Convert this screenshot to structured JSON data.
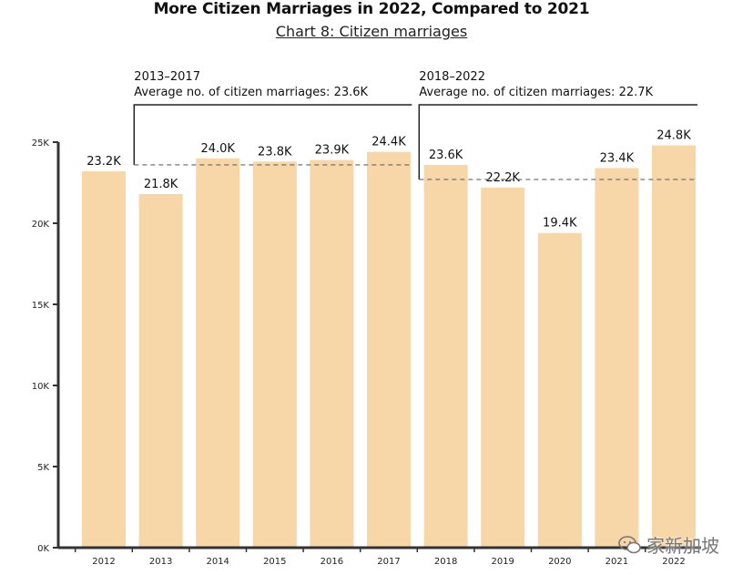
{
  "chart_data": {
    "type": "bar",
    "title": "More Citizen Marriages in 2022, Compared to 2021",
    "subtitle": "Chart 8: Citizen marriages",
    "categories": [
      "2012",
      "2013",
      "2014",
      "2015",
      "2016",
      "2017",
      "2018",
      "2019",
      "2020",
      "2021",
      "2022"
    ],
    "values": [
      23.2,
      21.8,
      24.0,
      23.8,
      23.9,
      24.4,
      23.6,
      22.2,
      19.4,
      23.4,
      24.8
    ],
    "data_labels": [
      "23.2K",
      "21.8K",
      "24.0K",
      "23.8K",
      "23.9K",
      "24.4K",
      "23.6K",
      "22.2K",
      "19.4K",
      "23.4K",
      "24.8K"
    ],
    "y_ticks": [
      {
        "value": 0,
        "label": "0K"
      },
      {
        "value": 5,
        "label": "5K"
      },
      {
        "value": 10,
        "label": "10K"
      },
      {
        "value": 15,
        "label": "15K"
      },
      {
        "value": 20,
        "label": "20K"
      },
      {
        "value": 25,
        "label": "25K"
      }
    ],
    "ylim": [
      0,
      25
    ],
    "bar_color": "#f7d6a7",
    "axis_color": "#333333",
    "averages": [
      {
        "period": "2013–2017",
        "text": "Average no. of citizen marriages: 23.6K",
        "value": 23.6,
        "from": "2013",
        "to": "2017"
      },
      {
        "period": "2018–2022",
        "text": "Average no. of citizen marriages: 22.7K",
        "value": 22.7,
        "from": "2018",
        "to": "2022"
      }
    ]
  },
  "watermark": {
    "text": "家新加坡",
    "icon": "wechat-icon"
  }
}
